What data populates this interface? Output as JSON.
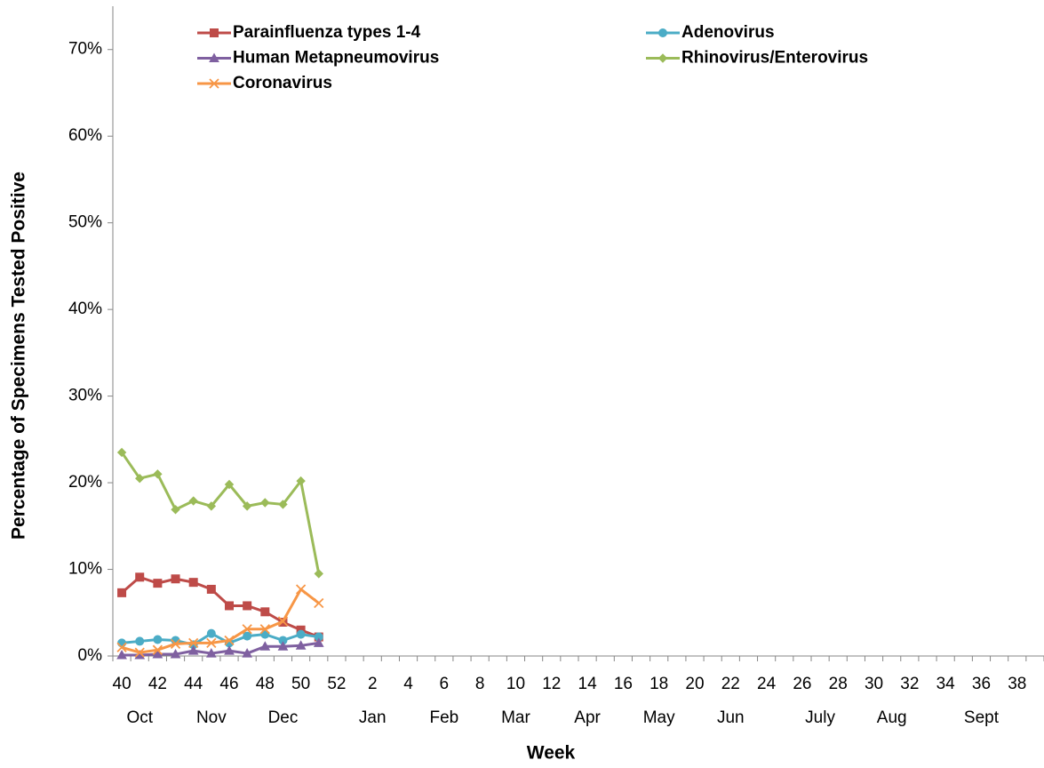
{
  "chart_data": {
    "type": "line",
    "x_label": "Week",
    "y_label": "Percentage of Specimens Tested Positive",
    "categories": [
      "40",
      null,
      "42",
      null,
      "44",
      null,
      "46",
      null,
      "48",
      null,
      "50",
      null,
      "52",
      null,
      "2",
      null,
      "4",
      null,
      "6",
      null,
      "8",
      null,
      "10",
      null,
      "12",
      null,
      "14",
      null,
      "16",
      null,
      "18",
      null,
      "20",
      null,
      "22",
      null,
      "24",
      null,
      "26",
      null,
      "28",
      null,
      "30",
      null,
      "32",
      null,
      "34",
      null,
      "36",
      null,
      "38",
      null
    ],
    "month_categories": [
      null,
      "Oct",
      null,
      null,
      null,
      "Nov",
      null,
      null,
      null,
      "Dec",
      null,
      null,
      null,
      null,
      "Jan",
      null,
      null,
      null,
      "Feb",
      null,
      null,
      null,
      "Mar",
      null,
      null,
      null,
      "Apr",
      null,
      null,
      null,
      "May",
      null,
      null,
      null,
      "Jun",
      null,
      null,
      null,
      null,
      "July",
      null,
      null,
      null,
      "Aug",
      null,
      null,
      null,
      null,
      "Sept",
      null,
      null,
      null
    ],
    "ylim": [
      0,
      75
    ],
    "yticks": [
      {
        "value": 0,
        "label": "0%"
      },
      {
        "value": 10,
        "label": "10%"
      },
      {
        "value": 20,
        "label": "20%"
      },
      {
        "value": 30,
        "label": "30%"
      },
      {
        "value": 40,
        "label": "40%"
      },
      {
        "value": 50,
        "label": "50%"
      },
      {
        "value": 60,
        "label": "60%"
      },
      {
        "value": 70,
        "label": "70%"
      }
    ],
    "series": [
      {
        "name": "Parainfluenza types 1-4",
        "color": "#be4b48",
        "marker": "square",
        "values": [
          7.3,
          9.1,
          8.4,
          8.9,
          8.5,
          7.7,
          5.8,
          5.8,
          5.1,
          3.9,
          3.0,
          2.2,
          null,
          null,
          null,
          null,
          null,
          null,
          null,
          null,
          null,
          null,
          null,
          null,
          null,
          null,
          null,
          null,
          null,
          null,
          null,
          null,
          null,
          null,
          null,
          null,
          null,
          null,
          null,
          null,
          null,
          null,
          null,
          null,
          null,
          null,
          null,
          null,
          null,
          null,
          null,
          null
        ]
      },
      {
        "name": "Adenovirus",
        "color": "#4bacc6",
        "marker": "circle",
        "values": [
          1.5,
          1.7,
          1.9,
          1.8,
          1.3,
          2.6,
          1.5,
          2.3,
          2.5,
          1.8,
          2.5,
          2.2,
          null,
          null,
          null,
          null,
          null,
          null,
          null,
          null,
          null,
          null,
          null,
          null,
          null,
          null,
          null,
          null,
          null,
          null,
          null,
          null,
          null,
          null,
          null,
          null,
          null,
          null,
          null,
          null,
          null,
          null,
          null,
          null,
          null,
          null,
          null,
          null,
          null,
          null,
          null,
          null
        ]
      },
      {
        "name": "Human Metapneumovirus",
        "color": "#7f60a0",
        "marker": "triangle",
        "values": [
          0.1,
          0.1,
          0.2,
          0.2,
          0.6,
          0.3,
          0.6,
          0.3,
          1.1,
          1.1,
          1.2,
          1.5,
          null,
          null,
          null,
          null,
          null,
          null,
          null,
          null,
          null,
          null,
          null,
          null,
          null,
          null,
          null,
          null,
          null,
          null,
          null,
          null,
          null,
          null,
          null,
          null,
          null,
          null,
          null,
          null,
          null,
          null,
          null,
          null,
          null,
          null,
          null,
          null,
          null,
          null,
          null,
          null
        ]
      },
      {
        "name": "Rhinovirus/Enterovirus",
        "color": "#9bbb59",
        "marker": "diamond",
        "values": [
          23.5,
          20.5,
          21.0,
          16.9,
          17.9,
          17.3,
          19.8,
          17.3,
          17.7,
          17.5,
          20.2,
          9.5,
          null,
          null,
          null,
          null,
          null,
          null,
          null,
          null,
          null,
          null,
          null,
          null,
          null,
          null,
          null,
          null,
          null,
          null,
          null,
          null,
          null,
          null,
          null,
          null,
          null,
          null,
          null,
          null,
          null,
          null,
          null,
          null,
          null,
          null,
          null,
          null,
          null,
          null,
          null,
          null
        ]
      },
      {
        "name": "Coronavirus",
        "color": "#f79646",
        "marker": "x",
        "values": [
          1.0,
          0.4,
          0.7,
          1.4,
          1.5,
          1.5,
          1.8,
          3.1,
          3.1,
          4.0,
          7.7,
          6.1,
          null,
          null,
          null,
          null,
          null,
          null,
          null,
          null,
          null,
          null,
          null,
          null,
          null,
          null,
          null,
          null,
          null,
          null,
          null,
          null,
          null,
          null,
          null,
          null,
          null,
          null,
          null,
          null,
          null,
          null,
          null,
          null,
          null,
          null,
          null,
          null,
          null,
          null,
          null,
          null
        ]
      }
    ]
  }
}
